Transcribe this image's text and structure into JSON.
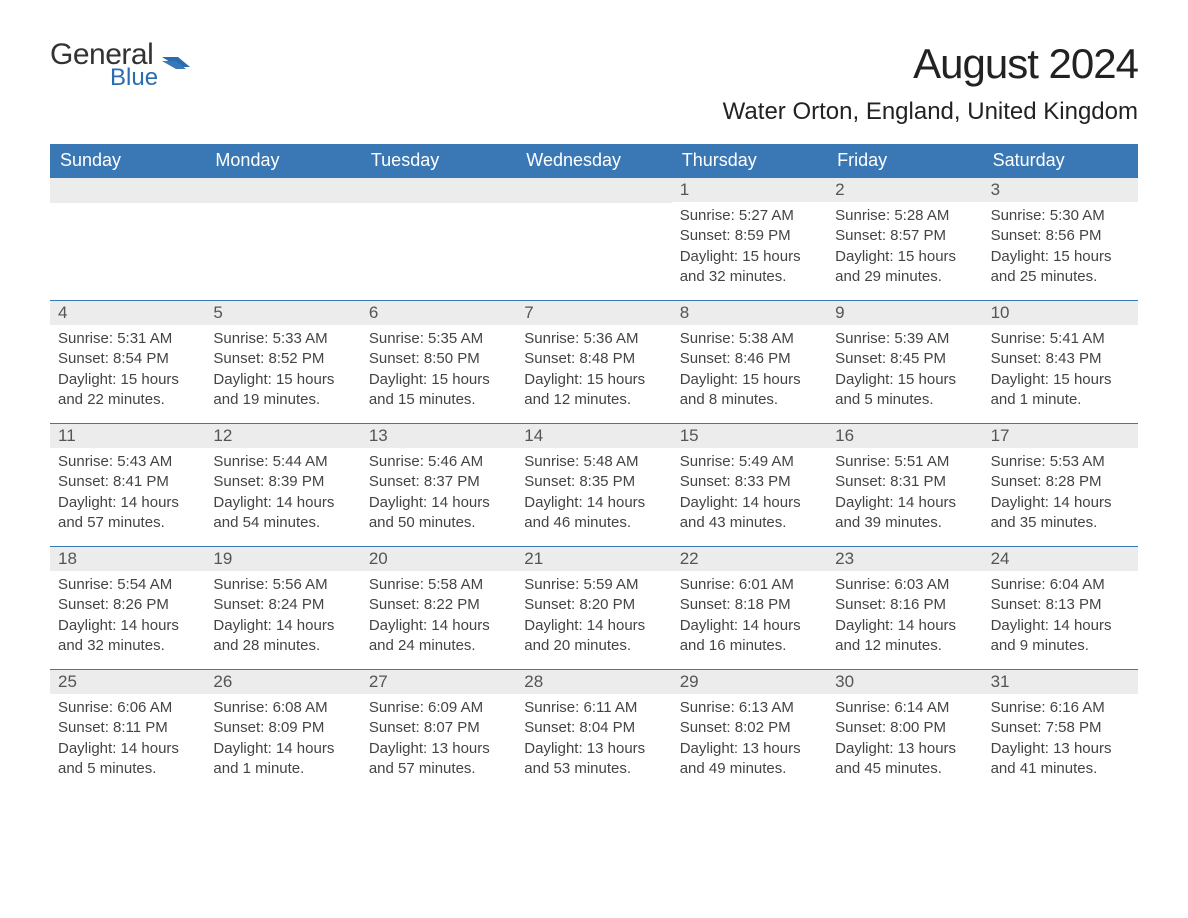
{
  "colors": {
    "header_bg": "#3a78b5",
    "header_text": "#ffffff",
    "daynum_bg": "#ececec",
    "daynum_text": "#555555",
    "body_text": "#444444",
    "accent": "#2a6cb0",
    "border": "#3a78b5",
    "page_bg": "#ffffff"
  },
  "logo": {
    "general": "General",
    "blue": "Blue"
  },
  "title": "August 2024",
  "location": "Water Orton, England, United Kingdom",
  "weekdays": [
    "Sunday",
    "Monday",
    "Tuesday",
    "Wednesday",
    "Thursday",
    "Friday",
    "Saturday"
  ],
  "labels": {
    "sunrise": "Sunrise: ",
    "sunset": "Sunset: ",
    "daylight": "Daylight: "
  },
  "weeks": [
    [
      null,
      null,
      null,
      null,
      {
        "n": "1",
        "sunrise": "5:27 AM",
        "sunset": "8:59 PM",
        "daylight": "15 hours and 32 minutes."
      },
      {
        "n": "2",
        "sunrise": "5:28 AM",
        "sunset": "8:57 PM",
        "daylight": "15 hours and 29 minutes."
      },
      {
        "n": "3",
        "sunrise": "5:30 AM",
        "sunset": "8:56 PM",
        "daylight": "15 hours and 25 minutes."
      }
    ],
    [
      {
        "n": "4",
        "sunrise": "5:31 AM",
        "sunset": "8:54 PM",
        "daylight": "15 hours and 22 minutes."
      },
      {
        "n": "5",
        "sunrise": "5:33 AM",
        "sunset": "8:52 PM",
        "daylight": "15 hours and 19 minutes."
      },
      {
        "n": "6",
        "sunrise": "5:35 AM",
        "sunset": "8:50 PM",
        "daylight": "15 hours and 15 minutes."
      },
      {
        "n": "7",
        "sunrise": "5:36 AM",
        "sunset": "8:48 PM",
        "daylight": "15 hours and 12 minutes."
      },
      {
        "n": "8",
        "sunrise": "5:38 AM",
        "sunset": "8:46 PM",
        "daylight": "15 hours and 8 minutes."
      },
      {
        "n": "9",
        "sunrise": "5:39 AM",
        "sunset": "8:45 PM",
        "daylight": "15 hours and 5 minutes."
      },
      {
        "n": "10",
        "sunrise": "5:41 AM",
        "sunset": "8:43 PM",
        "daylight": "15 hours and 1 minute."
      }
    ],
    [
      {
        "n": "11",
        "sunrise": "5:43 AM",
        "sunset": "8:41 PM",
        "daylight": "14 hours and 57 minutes."
      },
      {
        "n": "12",
        "sunrise": "5:44 AM",
        "sunset": "8:39 PM",
        "daylight": "14 hours and 54 minutes."
      },
      {
        "n": "13",
        "sunrise": "5:46 AM",
        "sunset": "8:37 PM",
        "daylight": "14 hours and 50 minutes."
      },
      {
        "n": "14",
        "sunrise": "5:48 AM",
        "sunset": "8:35 PM",
        "daylight": "14 hours and 46 minutes."
      },
      {
        "n": "15",
        "sunrise": "5:49 AM",
        "sunset": "8:33 PM",
        "daylight": "14 hours and 43 minutes."
      },
      {
        "n": "16",
        "sunrise": "5:51 AM",
        "sunset": "8:31 PM",
        "daylight": "14 hours and 39 minutes."
      },
      {
        "n": "17",
        "sunrise": "5:53 AM",
        "sunset": "8:28 PM",
        "daylight": "14 hours and 35 minutes."
      }
    ],
    [
      {
        "n": "18",
        "sunrise": "5:54 AM",
        "sunset": "8:26 PM",
        "daylight": "14 hours and 32 minutes."
      },
      {
        "n": "19",
        "sunrise": "5:56 AM",
        "sunset": "8:24 PM",
        "daylight": "14 hours and 28 minutes."
      },
      {
        "n": "20",
        "sunrise": "5:58 AM",
        "sunset": "8:22 PM",
        "daylight": "14 hours and 24 minutes."
      },
      {
        "n": "21",
        "sunrise": "5:59 AM",
        "sunset": "8:20 PM",
        "daylight": "14 hours and 20 minutes."
      },
      {
        "n": "22",
        "sunrise": "6:01 AM",
        "sunset": "8:18 PM",
        "daylight": "14 hours and 16 minutes."
      },
      {
        "n": "23",
        "sunrise": "6:03 AM",
        "sunset": "8:16 PM",
        "daylight": "14 hours and 12 minutes."
      },
      {
        "n": "24",
        "sunrise": "6:04 AM",
        "sunset": "8:13 PM",
        "daylight": "14 hours and 9 minutes."
      }
    ],
    [
      {
        "n": "25",
        "sunrise": "6:06 AM",
        "sunset": "8:11 PM",
        "daylight": "14 hours and 5 minutes."
      },
      {
        "n": "26",
        "sunrise": "6:08 AM",
        "sunset": "8:09 PM",
        "daylight": "14 hours and 1 minute."
      },
      {
        "n": "27",
        "sunrise": "6:09 AM",
        "sunset": "8:07 PM",
        "daylight": "13 hours and 57 minutes."
      },
      {
        "n": "28",
        "sunrise": "6:11 AM",
        "sunset": "8:04 PM",
        "daylight": "13 hours and 53 minutes."
      },
      {
        "n": "29",
        "sunrise": "6:13 AM",
        "sunset": "8:02 PM",
        "daylight": "13 hours and 49 minutes."
      },
      {
        "n": "30",
        "sunrise": "6:14 AM",
        "sunset": "8:00 PM",
        "daylight": "13 hours and 45 minutes."
      },
      {
        "n": "31",
        "sunrise": "6:16 AM",
        "sunset": "7:58 PM",
        "daylight": "13 hours and 41 minutes."
      }
    ]
  ]
}
